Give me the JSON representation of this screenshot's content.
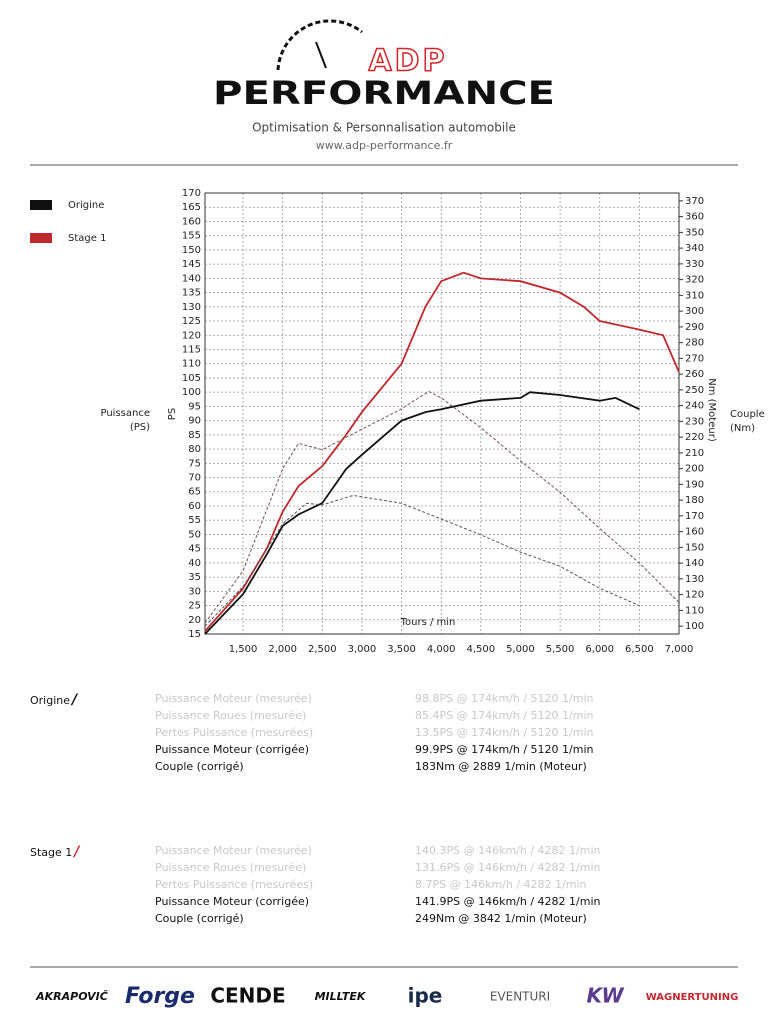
{
  "header": {
    "brand_top": "ADP",
    "brand_main": "PERFORMANCE",
    "tagline": "Optimisation & Personnalisation automobile",
    "url": "www.adp-performance.fr"
  },
  "chart_data": {
    "type": "line",
    "y_label": "PS",
    "y2_label": "Nm (Moteur)",
    "x_label": "Tours / min",
    "y_side_label": [
      "Puissance",
      "(PS)"
    ],
    "y2_side_label": [
      "Couple",
      "(Nm)"
    ],
    "xlim": [
      1020,
      7000
    ],
    "xticks": [
      {
        "value": 1500,
        "label": "1,500"
      },
      {
        "value": 2000,
        "label": "2,000"
      },
      {
        "value": 2500,
        "label": "2,500"
      },
      {
        "value": 3000,
        "label": "3,000"
      },
      {
        "value": 3500,
        "label": "3,500"
      },
      {
        "value": 4000,
        "label": "4,000"
      },
      {
        "value": 4500,
        "label": "4,500"
      },
      {
        "value": 5000,
        "label": "5,000"
      },
      {
        "value": 5500,
        "label": "5,500"
      },
      {
        "value": 6000,
        "label": "6,000"
      },
      {
        "value": 6500,
        "label": "6,500"
      },
      {
        "value": 7000,
        "label": "7,000"
      }
    ],
    "ylim": [
      15,
      170
    ],
    "yticks": [
      15,
      20,
      25,
      30,
      35,
      40,
      45,
      50,
      55,
      60,
      65,
      70,
      75,
      80,
      85,
      90,
      95,
      100,
      105,
      110,
      115,
      120,
      125,
      130,
      135,
      140,
      145,
      150,
      155,
      160,
      165,
      170
    ],
    "y2lim": [
      95,
      375
    ],
    "y2ticks": [
      100,
      110,
      120,
      130,
      140,
      150,
      160,
      170,
      180,
      190,
      200,
      210,
      220,
      230,
      240,
      250,
      260,
      270,
      280,
      290,
      300,
      310,
      320,
      330,
      340,
      350,
      360,
      370
    ],
    "grid": true,
    "series": [
      {
        "name": "Origine",
        "color": "#111111",
        "x": [
          1020,
          1500,
          1800,
          2000,
          2200,
          2500,
          2800,
          3000,
          3500,
          3800,
          4000,
          4500,
          5000,
          5120,
          5500,
          6000,
          6200,
          6500
        ],
        "values": [
          15,
          29,
          43,
          53,
          57,
          61,
          73,
          78,
          90,
          93,
          94,
          97,
          98,
          100,
          99,
          97,
          98,
          94
        ]
      },
      {
        "name": "Stage 1",
        "color": "#c0282d",
        "x": [
          1020,
          1500,
          1800,
          2000,
          2200,
          2500,
          2800,
          3000,
          3500,
          3800,
          4000,
          4282,
          4500,
          5000,
          5500,
          5800,
          6000,
          6500,
          6800,
          7000
        ],
        "values": [
          16,
          31,
          45,
          58,
          67,
          74,
          85,
          93,
          110,
          130,
          139,
          142,
          140,
          139,
          135,
          130,
          125,
          122,
          120,
          107
        ]
      },
      {
        "name": "Origine",
        "color": "#555555",
        "axis": "y2",
        "dash": true,
        "x": [
          1020,
          1500,
          2000,
          2300,
          2500,
          2889,
          3500,
          4000,
          4500,
          5000,
          5500,
          6000,
          6500
        ],
        "values": [
          100,
          125,
          165,
          178,
          177,
          183,
          178,
          168,
          158,
          147,
          138,
          124,
          113
        ]
      },
      {
        "name": "Stage 1",
        "color": "#7a5050",
        "axis": "y2",
        "dash": true,
        "x": [
          1020,
          1500,
          2000,
          2200,
          2500,
          3000,
          3500,
          3842,
          4000,
          4500,
          5000,
          5500,
          6000,
          6500,
          7000
        ],
        "values": [
          102,
          135,
          200,
          216,
          212,
          225,
          238,
          249,
          245,
          226,
          205,
          185,
          162,
          140,
          115
        ]
      }
    ]
  },
  "results": [
    {
      "label": "Origine",
      "marker": "/",
      "muted_rows": 3,
      "rows": [
        [
          "Puissance Moteur (mesurée)",
          "98.8PS @ 174km/h / 5120 1/min"
        ],
        [
          "Puissance Roues (mesurée)",
          "85.4PS @ 174km/h / 5120 1/min"
        ],
        [
          "Pertes Puissance (mesurées)",
          "13.5PS @ 174km/h / 5120 1/min"
        ],
        [
          "Puissance Moteur (corrigée)",
          "99.9PS @ 174km/h / 5120 1/min"
        ],
        [
          "Couple (corrigé)",
          "183Nm @ 2889 1/min (Moteur)"
        ]
      ]
    },
    {
      "label": "Stage 1",
      "marker": "/",
      "muted_rows": 3,
      "rows": [
        [
          "Puissance Moteur (mesurée)",
          "140.3PS @ 146km/h / 4282 1/min"
        ],
        [
          "Puissance Roues (mesurée)",
          "131.6PS @ 146km/h / 4282 1/min"
        ],
        [
          "Pertes Puissance (mesurées)",
          "8.7PS @ 146km/h / 4282 1/min"
        ],
        [
          "Puissance Moteur (corrigée)",
          "141.9PS @ 146km/h / 4282 1/min"
        ],
        [
          "Couple (corrigé)",
          "249Nm @ 3842 1/min (Moteur)"
        ]
      ]
    }
  ],
  "footer": {
    "brands": [
      "AKRAPOVIČ",
      "Forge",
      "CENDE",
      "MILLTEK",
      "ipe",
      "EVENTURI",
      "KW",
      "WAGNERTUNING"
    ]
  }
}
